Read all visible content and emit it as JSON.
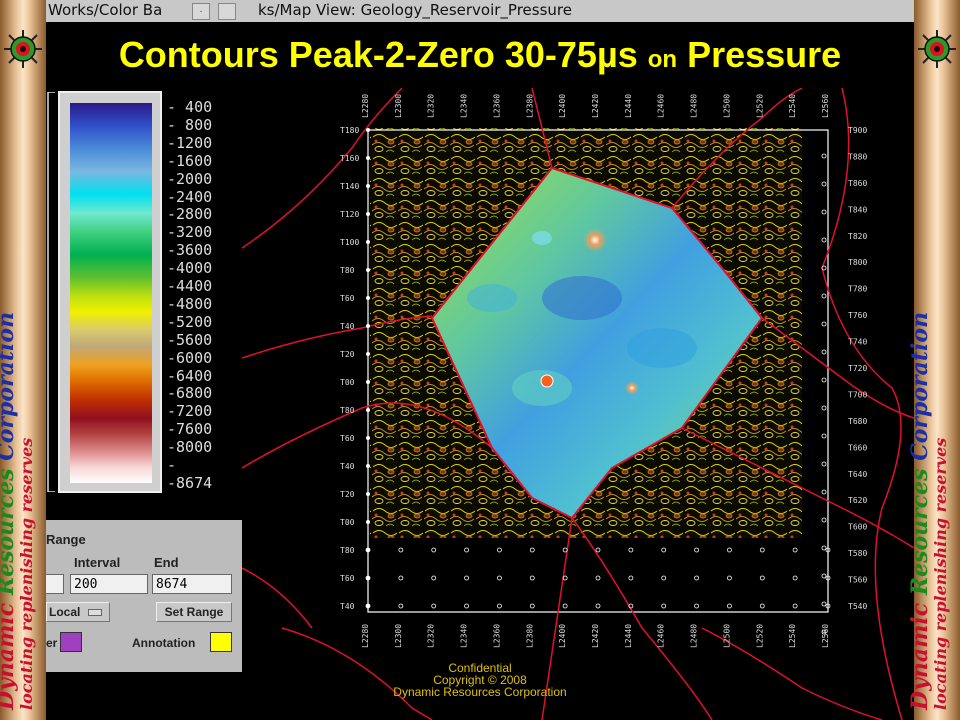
{
  "window": {
    "left_title": "Works/Color Ba",
    "right_title": "ks/Map View: Geology_Reservoir_Pressure"
  },
  "headline": {
    "part1": "Contours Peak-2-Zero 30-75µs",
    "part2": "on",
    "part3": "Pressure"
  },
  "branding": {
    "word1": "Dynamic",
    "word2": "Resources",
    "word3": "Corporation",
    "tagline": "locating replenishing reserves"
  },
  "colorbar": {
    "labels": [
      "- 400",
      "- 800",
      "-1200",
      "-1600",
      "-2000",
      "-2400",
      "-2800",
      "-3200",
      "-3600",
      "-4000",
      "-4400",
      "-4800",
      "-5200",
      "-5600",
      "-6000",
      "-6400",
      "-6800",
      "-7200",
      "-7600",
      "-8000",
      "-",
      "-8674"
    ]
  },
  "range_panel": {
    "title": "Range",
    "interval_label": "Interval",
    "end_label": "End",
    "interval_value": "200",
    "end_value": "8674",
    "scope_value": "Local",
    "set_range_label": "Set Range",
    "color_label": "er",
    "annotation_label": "Annotation",
    "color_swatch": "#a040c0",
    "annotation_swatch": "#ffff00"
  },
  "map": {
    "top_lines": [
      "L2280",
      "L2300",
      "L2320",
      "L2340",
      "L2360",
      "L2380",
      "L2400",
      "L2420",
      "L2440",
      "L2460",
      "L2480",
      "L2500",
      "L2520",
      "L2540",
      "L2560"
    ],
    "left_lines": [
      "T180",
      "T160",
      "T140",
      "T120",
      "T100",
      "T80",
      "T60",
      "T40",
      "T20",
      "T00",
      "T80",
      "T60",
      "T40",
      "T20",
      "T00",
      "T80",
      "T60",
      "T40"
    ],
    "right_lines": [
      "T900",
      "T880",
      "T860",
      "T840",
      "T820",
      "T800",
      "T780",
      "T760",
      "T740",
      "T720",
      "T700",
      "T680",
      "T660",
      "T640",
      "T620",
      "T600",
      "T580",
      "T560",
      "T540"
    ],
    "boundary_color": "#e01030"
  },
  "footer": {
    "line1": "Confidential",
    "line2": "Copyright © 2008",
    "line3": "Dynamic Resources Corporation"
  }
}
